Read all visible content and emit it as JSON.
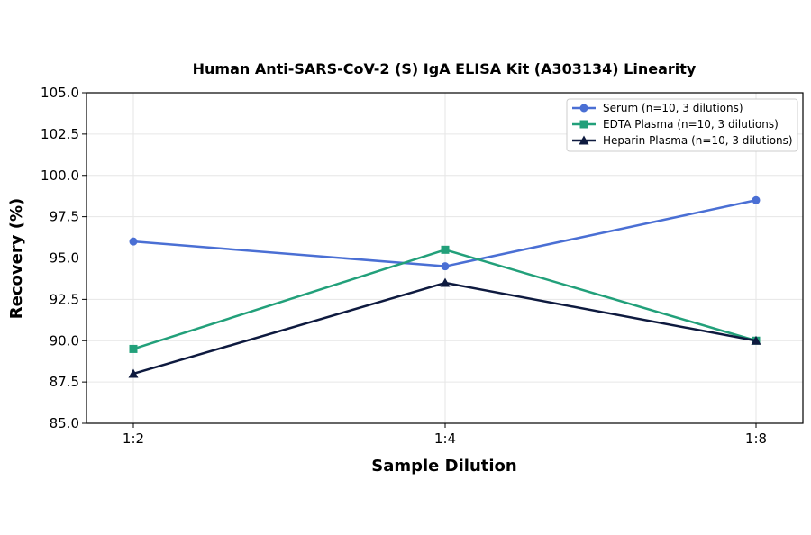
{
  "chart_data": {
    "type": "line",
    "title": "Human Anti-SARS-CoV-2 (S) IgA ELISA Kit (A303134) Linearity",
    "xlabel": "Sample Dilution",
    "ylabel": "Recovery (%)",
    "categories": [
      "1:2",
      "1:4",
      "1:8"
    ],
    "ylim": [
      85.0,
      105.0
    ],
    "yticks": [
      "85.0",
      "87.5",
      "90.0",
      "92.5",
      "95.0",
      "97.5",
      "100.0",
      "102.5",
      "105.0"
    ],
    "grid": true,
    "legend_position": "top-right",
    "series": [
      {
        "name": "Serum (n=10, 3 dilutions)",
        "values": [
          96.0,
          94.5,
          98.5
        ],
        "color": "#4a6fd4",
        "marker": "circle"
      },
      {
        "name": "EDTA Plasma (n=10, 3 dilutions)",
        "values": [
          89.5,
          95.5,
          90.0
        ],
        "color": "#22a07a",
        "marker": "square"
      },
      {
        "name": "Heparin Plasma (n=10, 3 dilutions)",
        "values": [
          88.0,
          93.5,
          90.0
        ],
        "color": "#0e1a3f",
        "marker": "triangle"
      }
    ]
  }
}
